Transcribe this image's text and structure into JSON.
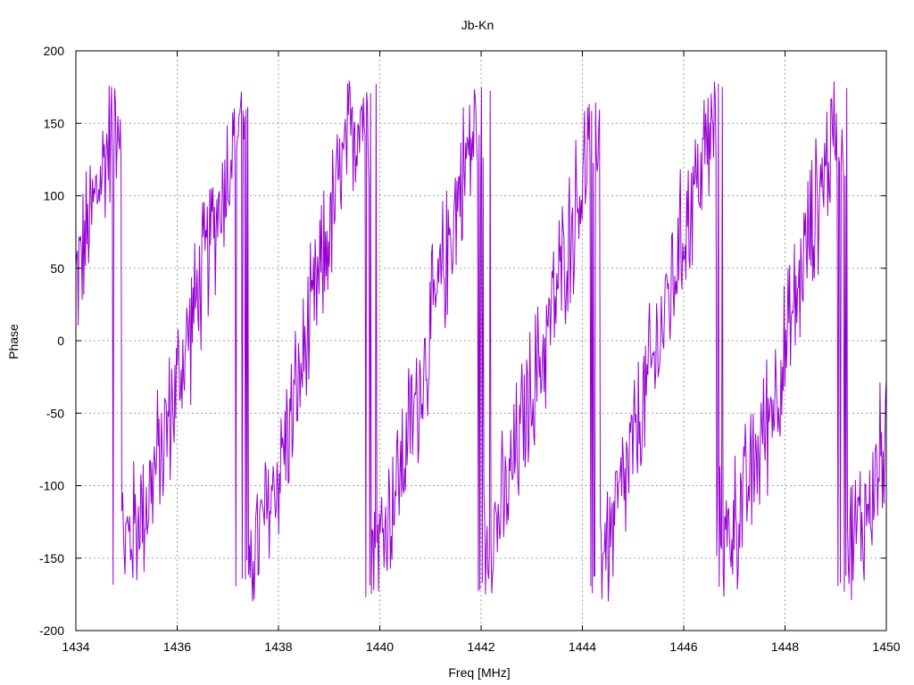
{
  "chart_data": {
    "type": "line",
    "title": "Jb-Kn",
    "xlabel": "Freq [MHz]",
    "ylabel": "Phase",
    "xlim": [
      1434,
      1450
    ],
    "ylim": [
      -200,
      200
    ],
    "xticks": [
      1434,
      1436,
      1438,
      1440,
      1442,
      1444,
      1446,
      1448,
      1450
    ],
    "yticks": [
      -200,
      -150,
      -100,
      -50,
      0,
      50,
      100,
      150,
      200
    ],
    "grid": true,
    "legend": "none",
    "series": [
      {
        "color": "#9400d3",
        "trend_anchors": [
          [
            1434.0,
            40
          ],
          [
            1434.4,
            100
          ],
          [
            1434.8,
            160
          ],
          [
            1435.0,
            -140
          ],
          [
            1435.4,
            -110
          ],
          [
            1435.8,
            -60
          ],
          [
            1436.2,
            0
          ],
          [
            1436.6,
            60
          ],
          [
            1437.0,
            120
          ],
          [
            1437.3,
            170
          ],
          [
            1437.6,
            -140
          ],
          [
            1438.0,
            -90
          ],
          [
            1438.4,
            -30
          ],
          [
            1438.8,
            40
          ],
          [
            1439.2,
            110
          ],
          [
            1439.6,
            160
          ],
          [
            1440.0,
            -140
          ],
          [
            1440.4,
            -90
          ],
          [
            1440.8,
            -30
          ],
          [
            1441.2,
            40
          ],
          [
            1441.6,
            110
          ],
          [
            1442.0,
            160
          ],
          [
            1442.1,
            -140
          ],
          [
            1442.5,
            -110
          ],
          [
            1442.8,
            -60
          ],
          [
            1443.2,
            -10
          ],
          [
            1443.6,
            50
          ],
          [
            1444.0,
            110
          ],
          [
            1444.2,
            150
          ],
          [
            1444.5,
            -140
          ],
          [
            1444.9,
            -90
          ],
          [
            1445.3,
            -30
          ],
          [
            1445.7,
            30
          ],
          [
            1446.1,
            90
          ],
          [
            1446.5,
            140
          ],
          [
            1446.8,
            -140
          ],
          [
            1447.2,
            -110
          ],
          [
            1447.6,
            -60
          ],
          [
            1448.0,
            -10
          ],
          [
            1448.4,
            60
          ],
          [
            1448.8,
            120
          ],
          [
            1449.1,
            160
          ],
          [
            1449.3,
            -140
          ],
          [
            1449.7,
            -110
          ],
          [
            1450.0,
            -60
          ]
        ],
        "noise_amplitude": 60,
        "sample_count": 1024
      }
    ]
  }
}
